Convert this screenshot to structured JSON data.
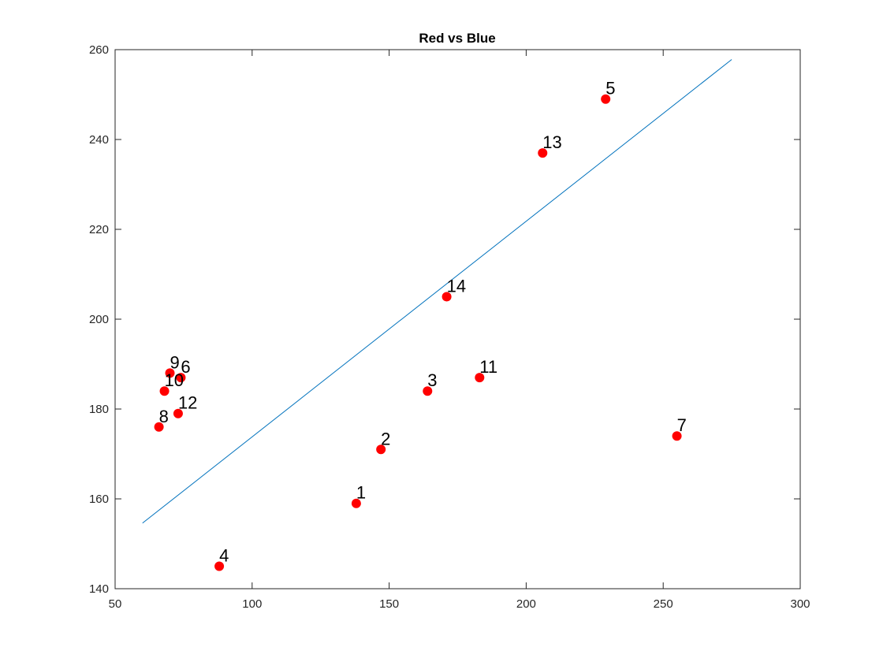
{
  "chart_data": {
    "type": "scatter",
    "title": "Red vs Blue",
    "xlabel": "",
    "ylabel": "",
    "xlim": [
      50,
      300
    ],
    "ylim": [
      140,
      260
    ],
    "xticks": [
      50,
      100,
      150,
      200,
      250,
      300
    ],
    "yticks": [
      140,
      160,
      180,
      200,
      220,
      240,
      260
    ],
    "grid": false,
    "points": [
      {
        "label": "1",
        "x": 138,
        "y": 159
      },
      {
        "label": "2",
        "x": 147,
        "y": 171
      },
      {
        "label": "3",
        "x": 164,
        "y": 184
      },
      {
        "label": "4",
        "x": 88,
        "y": 145
      },
      {
        "label": "5",
        "x": 229,
        "y": 249
      },
      {
        "label": "6",
        "x": 74,
        "y": 187
      },
      {
        "label": "7",
        "x": 255,
        "y": 174
      },
      {
        "label": "8",
        "x": 66,
        "y": 176
      },
      {
        "label": "9",
        "x": 70,
        "y": 188
      },
      {
        "label": "10",
        "x": 68,
        "y": 184
      },
      {
        "label": "11",
        "x": 183,
        "y": 187
      },
      {
        "label": "12",
        "x": 73,
        "y": 179
      },
      {
        "label": "13",
        "x": 206,
        "y": 237
      },
      {
        "label": "14",
        "x": 171,
        "y": 205
      }
    ],
    "fit_line": {
      "x": [
        60,
        275
      ],
      "y": [
        154.6,
        257.8
      ]
    },
    "colors": {
      "points": "#ff0000",
      "line": "#0072bd",
      "axes": "#262626"
    }
  }
}
